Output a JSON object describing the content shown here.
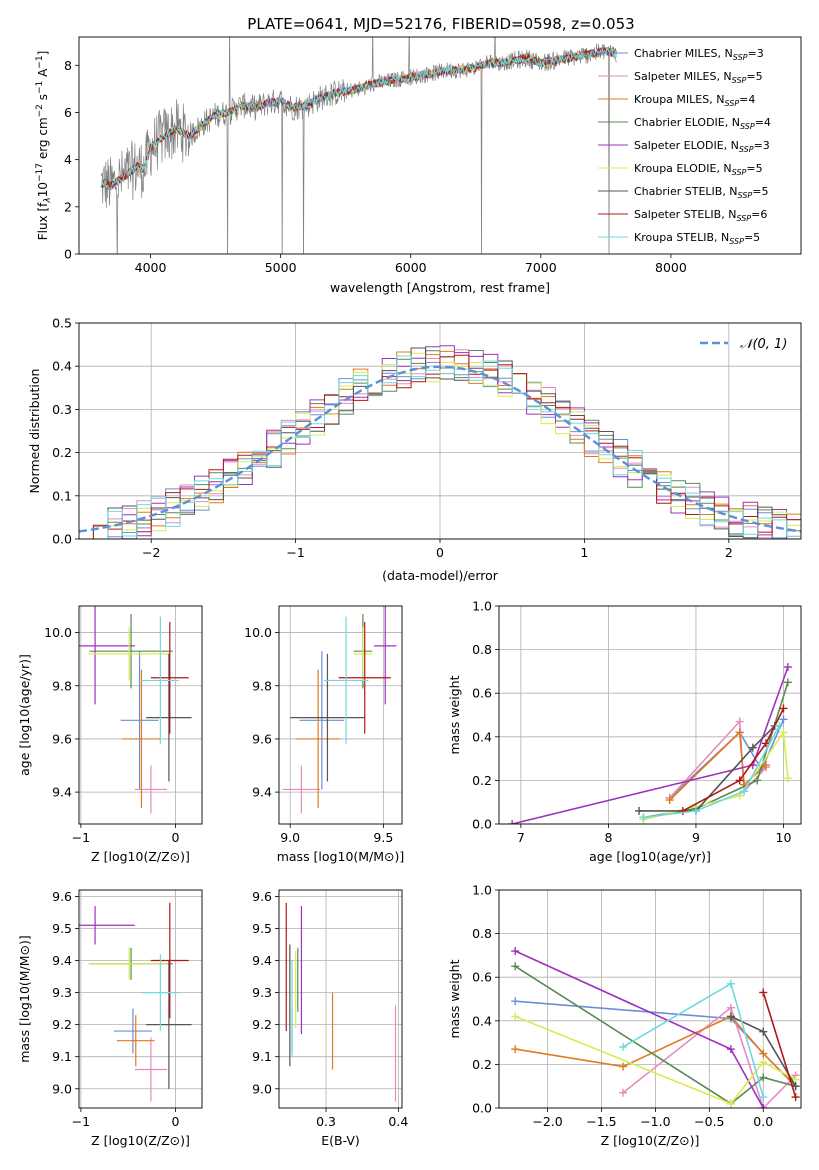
{
  "figure_title": "PLATE=0641, MJD=52176, FIBERID=0598, z=0.053",
  "colors": {
    "Chabrier MILES": "#6a8fd8",
    "Salpeter MILES": "#e88abf",
    "Kroupa MILES": "#e07a20",
    "Chabrier ELODIE": "#5a8a55",
    "Salpeter ELODIE": "#a030c0",
    "Kroupa ELODIE": "#d8ec50",
    "Chabrier STELIB": "#555555",
    "Salpeter STELIB": "#b01818",
    "Kroupa STELIB": "#70d8e0",
    "data": "#808080",
    "normal": "#5b8fd6"
  },
  "chart_data": [
    {
      "id": "spectrum",
      "type": "line",
      "xlabel": "wavelength [Angstrom, rest frame]",
      "ylabel": "Flux [f",
      "xlim": [
        3450,
        9000
      ],
      "ylim": [
        0,
        9.2
      ],
      "xticks": [
        4000,
        5000,
        6000,
        7000,
        8000
      ],
      "yticks": [
        0,
        2,
        4,
        6,
        8
      ],
      "continuum": [
        [
          3620,
          3.0
        ],
        [
          3700,
          2.9
        ],
        [
          3800,
          3.3
        ],
        [
          3900,
          3.7
        ],
        [
          3950,
          3.6
        ],
        [
          4000,
          4.5
        ],
        [
          4100,
          5.0
        ],
        [
          4200,
          5.3
        ],
        [
          4300,
          5.0
        ],
        [
          4400,
          5.5
        ],
        [
          4500,
          5.9
        ],
        [
          4600,
          6.0
        ],
        [
          4700,
          6.3
        ],
        [
          4800,
          6.2
        ],
        [
          4900,
          6.4
        ],
        [
          5000,
          6.5
        ],
        [
          5100,
          6.2
        ],
        [
          5200,
          6.3
        ],
        [
          5300,
          6.6
        ],
        [
          5400,
          6.8
        ],
        [
          5500,
          6.9
        ],
        [
          5600,
          7.0
        ],
        [
          5700,
          7.2
        ],
        [
          5800,
          7.3
        ],
        [
          5900,
          7.4
        ],
        [
          6000,
          7.5
        ],
        [
          6100,
          7.6
        ],
        [
          6200,
          7.7
        ],
        [
          6300,
          7.8
        ],
        [
          6400,
          7.8
        ],
        [
          6500,
          7.9
        ],
        [
          6600,
          8.1
        ],
        [
          6700,
          8.1
        ],
        [
          6800,
          8.2
        ],
        [
          6900,
          8.3
        ],
        [
          7000,
          8.1
        ],
        [
          7100,
          8.2
        ],
        [
          7200,
          8.3
        ],
        [
          7300,
          8.4
        ],
        [
          7400,
          8.5
        ],
        [
          7500,
          8.6
        ],
        [
          7580,
          8.5
        ]
      ],
      "data_range": [
        3620,
        7580
      ],
      "series": [
        {
          "name": "Chabrier MILES",
          "nssp": "3"
        },
        {
          "name": "Salpeter MILES",
          "nssp": "5"
        },
        {
          "name": "Kroupa MILES",
          "nssp": "4"
        },
        {
          "name": "Chabrier ELODIE",
          "nssp": "4"
        },
        {
          "name": "Salpeter ELODIE",
          "nssp": "3"
        },
        {
          "name": "Kroupa ELODIE",
          "nssp": "5"
        },
        {
          "name": "Chabrier STELIB",
          "nssp": "5"
        },
        {
          "name": "Salpeter STELIB",
          "nssp": "6"
        },
        {
          "name": "Kroupa STELIB",
          "nssp": "5"
        }
      ]
    },
    {
      "id": "residuals",
      "type": "histogram",
      "xlabel": "(data-model)/error",
      "ylabel": "Normed distribution",
      "xlim": [
        -2.5,
        2.5
      ],
      "ylim": [
        0,
        0.5
      ],
      "xticks": [
        -2,
        -1,
        0,
        1,
        2
      ],
      "yticks": [
        0.0,
        0.1,
        0.2,
        0.3,
        0.4,
        0.5
      ],
      "bin_width": 0.1,
      "legend_label": "𝒩(0, 1)",
      "legend_location": "upper right"
    },
    {
      "id": "age_vs_Z",
      "type": "errorbar",
      "xlabel": "Z [log10(Z/Z⊙)]",
      "ylabel": "age  [log10(age/yr)]",
      "xlim": [
        -1.02,
        0.28
      ],
      "ylim": [
        9.28,
        10.1
      ],
      "xticks": [
        -1,
        0
      ],
      "yticks": [
        9.4,
        9.6,
        9.8,
        10.0
      ],
      "points": [
        {
          "series": "Chabrier MILES",
          "x": -0.38,
          "xerr": 0.2,
          "y": 9.67,
          "yerr": 0.26
        },
        {
          "series": "Salpeter MILES",
          "x": -0.26,
          "xerr": 0.17,
          "y": 9.41,
          "yerr": 0.09
        },
        {
          "series": "Kroupa MILES",
          "x": -0.36,
          "xerr": 0.2,
          "y": 9.6,
          "yerr": 0.26
        },
        {
          "series": "Chabrier ELODIE",
          "x": -0.47,
          "xerr": 0.44,
          "y": 9.93,
          "yerr": 0.14
        },
        {
          "series": "Salpeter ELODIE",
          "x": -0.85,
          "xerr": 0.42,
          "y": 9.95,
          "yerr": 0.22
        },
        {
          "series": "Kroupa ELODIE",
          "x": -0.49,
          "xerr": 0.43,
          "y": 9.92,
          "yerr": 0.1
        },
        {
          "series": "Chabrier STELIB",
          "x": -0.07,
          "xerr": 0.24,
          "y": 9.68,
          "yerr": 0.24
        },
        {
          "series": "Salpeter STELIB",
          "x": -0.06,
          "xerr": 0.2,
          "y": 9.83,
          "yerr": 0.21
        },
        {
          "series": "Kroupa STELIB",
          "x": -0.16,
          "xerr": 0.2,
          "y": 9.82,
          "yerr": 0.24
        }
      ]
    },
    {
      "id": "age_vs_mass",
      "type": "errorbar",
      "xlabel": "mass [log10(M/M⊙)]",
      "ylabel": "",
      "xlim": [
        8.94,
        9.6
      ],
      "ylim": [
        9.28,
        10.1
      ],
      "xticks": [
        9.0,
        9.5
      ],
      "yticks": [
        9.4,
        9.6,
        9.8,
        10.0
      ],
      "points": [
        {
          "series": "Chabrier MILES",
          "x": 9.17,
          "xerr": 0.12,
          "y": 9.67,
          "yerr": 0.26
        },
        {
          "series": "Salpeter MILES",
          "x": 9.06,
          "xerr": 0.1,
          "y": 9.41,
          "yerr": 0.09
        },
        {
          "series": "Kroupa MILES",
          "x": 9.15,
          "xerr": 0.12,
          "y": 9.6,
          "yerr": 0.26
        },
        {
          "series": "Chabrier ELODIE",
          "x": 9.39,
          "xerr": 0.05,
          "y": 9.93,
          "yerr": 0.14
        },
        {
          "series": "Salpeter ELODIE",
          "x": 9.51,
          "xerr": 0.06,
          "y": 9.95,
          "yerr": 0.22
        },
        {
          "series": "Kroupa ELODIE",
          "x": 9.39,
          "xerr": 0.05,
          "y": 9.92,
          "yerr": 0.1
        },
        {
          "series": "Chabrier STELIB",
          "x": 9.2,
          "xerr": 0.2,
          "y": 9.68,
          "yerr": 0.24
        },
        {
          "series": "Salpeter STELIB",
          "x": 9.4,
          "xerr": 0.14,
          "y": 9.83,
          "yerr": 0.21
        },
        {
          "series": "Kroupa STELIB",
          "x": 9.3,
          "xerr": 0.12,
          "y": 9.82,
          "yerr": 0.24
        }
      ]
    },
    {
      "id": "weight_vs_age",
      "type": "line",
      "xlabel": "age  [log10(age/yr)]",
      "ylabel": "mass weight",
      "xlim": [
        6.75,
        10.2
      ],
      "ylim": [
        0,
        1
      ],
      "xticks": [
        7,
        8,
        9,
        10
      ],
      "yticks": [
        0.0,
        0.2,
        0.4,
        0.6,
        0.8,
        1.0
      ],
      "series": [
        {
          "name": "Chabrier MILES",
          "x": [
            8.7,
            9.5,
            9.75,
            10.0
          ],
          "y": [
            0.12,
            0.42,
            0.25,
            0.48
          ]
        },
        {
          "name": "Salpeter MILES",
          "x": [
            8.7,
            9.5,
            9.55,
            9.8
          ],
          "y": [
            0.12,
            0.47,
            0.15,
            0.26
          ]
        },
        {
          "name": "Kroupa MILES",
          "x": [
            8.7,
            9.5,
            9.55,
            9.8
          ],
          "y": [
            0.11,
            0.42,
            0.18,
            0.27
          ]
        },
        {
          "name": "Chabrier ELODIE",
          "x": [
            8.4,
            9.0,
            9.7,
            10.05
          ],
          "y": [
            0.03,
            0.07,
            0.2,
            0.65
          ]
        },
        {
          "name": "Salpeter ELODIE",
          "x": [
            6.9,
            9.65,
            10.05
          ],
          "y": [
            0.0,
            0.27,
            0.72
          ]
        },
        {
          "name": "Kroupa ELODIE",
          "x": [
            8.4,
            9.5,
            10.0,
            10.05
          ],
          "y": [
            0.02,
            0.13,
            0.42,
            0.21
          ]
        },
        {
          "name": "Chabrier STELIB",
          "x": [
            8.35,
            9.0,
            9.65,
            9.9
          ],
          "y": [
            0.06,
            0.06,
            0.35,
            0.45
          ]
        },
        {
          "name": "Salpeter STELIB",
          "x": [
            8.85,
            9.5,
            9.8,
            10.0
          ],
          "y": [
            0.06,
            0.2,
            0.37,
            0.53
          ]
        },
        {
          "name": "Kroupa STELIB",
          "x": [
            8.4,
            9.0,
            9.55,
            9.95
          ],
          "y": [
            0.03,
            0.06,
            0.15,
            0.45
          ]
        }
      ]
    },
    {
      "id": "mass_vs_Z",
      "type": "errorbar",
      "xlabel": "Z [log10(Z/Z⊙)]",
      "ylabel": "mass [log10(M/M⊙)]",
      "xlim": [
        -1.02,
        0.28
      ],
      "ylim": [
        8.94,
        9.62
      ],
      "xticks": [
        -1,
        0
      ],
      "yticks": [
        9.0,
        9.1,
        9.2,
        9.3,
        9.4,
        9.5,
        9.6
      ],
      "points": [
        {
          "series": "Chabrier MILES",
          "x": -0.45,
          "xerr": 0.2,
          "y": 9.18,
          "yerr": 0.07
        },
        {
          "series": "Salpeter MILES",
          "x": -0.26,
          "xerr": 0.17,
          "y": 9.06,
          "yerr": 0.1
        },
        {
          "series": "Kroupa MILES",
          "x": -0.42,
          "xerr": 0.2,
          "y": 9.15,
          "yerr": 0.08
        },
        {
          "series": "Chabrier ELODIE",
          "x": -0.47,
          "xerr": 0.44,
          "y": 9.39,
          "yerr": 0.05
        },
        {
          "series": "Salpeter ELODIE",
          "x": -0.85,
          "xerr": 0.42,
          "y": 9.51,
          "yerr": 0.06
        },
        {
          "series": "Kroupa ELODIE",
          "x": -0.49,
          "xerr": 0.43,
          "y": 9.39,
          "yerr": 0.05
        },
        {
          "series": "Chabrier STELIB",
          "x": -0.07,
          "xerr": 0.24,
          "y": 9.2,
          "yerr": 0.2
        },
        {
          "series": "Salpeter STELIB",
          "x": -0.06,
          "xerr": 0.2,
          "y": 9.4,
          "yerr": 0.18
        },
        {
          "series": "Kroupa STELIB",
          "x": -0.16,
          "xerr": 0.2,
          "y": 9.3,
          "yerr": 0.12
        }
      ]
    },
    {
      "id": "mass_vs_ebv",
      "type": "errorbar",
      "xlabel": "E(B-V)",
      "ylabel": "",
      "xlim": [
        0.235,
        0.405
      ],
      "ylim": [
        8.94,
        9.62
      ],
      "xticks": [
        0.3,
        0.4
      ],
      "yticks": [
        9.0,
        9.1,
        9.2,
        9.3,
        9.4,
        9.5,
        9.6
      ],
      "points": [
        {
          "series": "Chabrier MILES",
          "x": 0.253,
          "y": 9.18,
          "yerr": 0.07
        },
        {
          "series": "Salpeter MILES",
          "x": 0.396,
          "y": 9.11,
          "yerr": 0.15
        },
        {
          "series": "Kroupa MILES",
          "x": 0.309,
          "y": 9.18,
          "yerr": 0.12
        },
        {
          "series": "Chabrier ELODIE",
          "x": 0.261,
          "y": 9.34,
          "yerr": 0.1
        },
        {
          "series": "Salpeter ELODIE",
          "x": 0.266,
          "y": 9.37,
          "yerr": 0.2
        },
        {
          "series": "Kroupa ELODIE",
          "x": 0.258,
          "y": 9.31,
          "yerr": 0.12
        },
        {
          "series": "Chabrier STELIB",
          "x": 0.25,
          "y": 9.26,
          "yerr": 0.19
        },
        {
          "series": "Salpeter STELIB",
          "x": 0.245,
          "y": 9.38,
          "yerr": 0.2
        },
        {
          "series": "Kroupa STELIB",
          "x": 0.253,
          "y": 9.25,
          "yerr": 0.15
        }
      ]
    },
    {
      "id": "weight_vs_Z",
      "type": "line",
      "xlabel": "Z [log10(Z/Z⊙)]",
      "ylabel": "mass weight",
      "xlim": [
        -2.45,
        0.35
      ],
      "ylim": [
        0,
        1
      ],
      "xticks": [
        -2.0,
        -1.5,
        -1.0,
        -0.5,
        0.0
      ],
      "yticks": [
        0.0,
        0.2,
        0.4,
        0.6,
        0.8,
        1.0
      ],
      "series": [
        {
          "name": "Chabrier MILES",
          "x": [
            -2.3,
            -0.3,
            0.0,
            0.3
          ],
          "y": [
            0.49,
            0.41,
            0.25,
            0.1
          ]
        },
        {
          "name": "Salpeter MILES",
          "x": [
            -1.3,
            -0.3,
            0.0,
            0.3
          ],
          "y": [
            0.07,
            0.46,
            0.0,
            0.15
          ]
        },
        {
          "name": "Kroupa MILES",
          "x": [
            -2.3,
            -1.3,
            -0.3,
            0.0,
            0.3
          ],
          "y": [
            0.27,
            0.19,
            0.42,
            0.25,
            0.1
          ]
        },
        {
          "name": "Chabrier ELODIE",
          "x": [
            -2.3,
            -0.3,
            0.0,
            0.3
          ],
          "y": [
            0.65,
            0.02,
            0.14,
            0.1
          ]
        },
        {
          "name": "Salpeter ELODIE",
          "x": [
            -2.3,
            -0.3,
            0.0
          ],
          "y": [
            0.72,
            0.27,
            0.0
          ]
        },
        {
          "name": "Kroupa ELODIE",
          "x": [
            -2.3,
            -0.3,
            0.0,
            0.3
          ],
          "y": [
            0.42,
            0.02,
            0.21,
            0.13
          ]
        },
        {
          "name": "Chabrier STELIB",
          "x": [
            -0.3,
            0.0,
            0.3
          ],
          "y": [
            0.42,
            0.35,
            0.1
          ]
        },
        {
          "name": "Salpeter STELIB",
          "x": [
            0.0,
            0.3
          ],
          "y": [
            0.53,
            0.05
          ]
        },
        {
          "name": "Kroupa STELIB",
          "x": [
            -1.3,
            -0.3,
            0.0
          ],
          "y": [
            0.28,
            0.57,
            0.05
          ]
        }
      ]
    }
  ]
}
